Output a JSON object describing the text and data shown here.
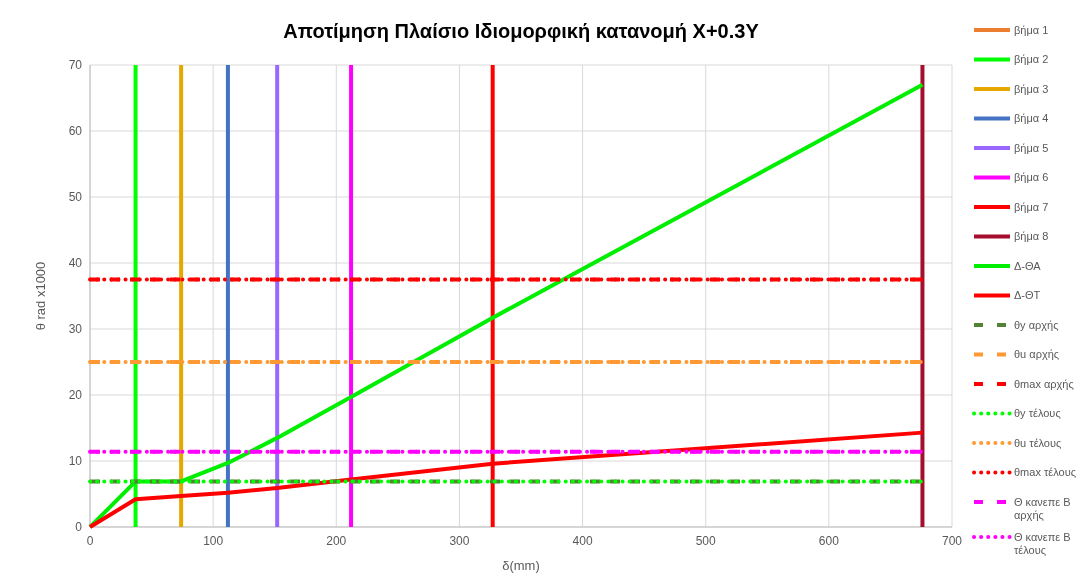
{
  "chart_data": {
    "type": "line",
    "title": "Αποτίμηση Πλαίσιο Ιδιομορφική κατανομή X+0.3Y",
    "xlabel": "δ(mm)",
    "ylabel": "θ rad x1000",
    "xlim": [
      0,
      700
    ],
    "xticks": [
      0,
      100,
      200,
      300,
      400,
      500,
      600,
      700
    ],
    "ylim": [
      0,
      70
    ],
    "yticks": [
      0,
      10,
      20,
      30,
      40,
      50,
      60,
      70
    ],
    "grid": true,
    "legend": "right",
    "marker": "none",
    "series": [
      {
        "name": "βήμα 1",
        "color": "#ed7d31",
        "x": [
          null,
          null
        ],
        "values": [
          null,
          null
        ],
        "line_style": "solid"
      },
      {
        "name": "βήμα 2",
        "color": "#00ff00",
        "x": [
          37,
          37
        ],
        "values": [
          0,
          70
        ],
        "line_style": "solid"
      },
      {
        "name": "βήμα 3",
        "color": "#e6a800",
        "x": [
          74,
          74
        ],
        "values": [
          0,
          70
        ],
        "line_style": "solid"
      },
      {
        "name": "βήμα 4",
        "color": "#4472c4",
        "x": [
          112,
          112
        ],
        "values": [
          0,
          70
        ],
        "line_style": "solid"
      },
      {
        "name": "βήμα 5",
        "color": "#9966ff",
        "x": [
          152,
          152
        ],
        "values": [
          0,
          70
        ],
        "line_style": "solid"
      },
      {
        "name": "βήμα 6",
        "color": "#ff00ff",
        "x": [
          212,
          212
        ],
        "values": [
          0,
          70
        ],
        "line_style": "solid"
      },
      {
        "name": "βήμα 7",
        "color": "#ff0000",
        "x": [
          327,
          327
        ],
        "values": [
          0,
          70
        ],
        "line_style": "solid"
      },
      {
        "name": "βήμα 8",
        "color": "#a50f2d",
        "x": [
          676,
          676
        ],
        "values": [
          0,
          70
        ],
        "line_style": "solid"
      },
      {
        "name": "Δ-ΘΑ",
        "color": "#00ee00",
        "x": [
          0,
          37,
          74,
          112,
          152,
          212,
          327,
          676
        ],
        "values": [
          0,
          6.9,
          6.9,
          9.7,
          13.5,
          19.7,
          31.7,
          67
        ],
        "line_style": "solid"
      },
      {
        "name": "Δ-ΘΤ",
        "color": "#ff0000",
        "x": [
          0,
          37,
          74,
          112,
          152,
          212,
          327,
          676
        ],
        "values": [
          0,
          4.2,
          4.7,
          5.2,
          5.9,
          7.2,
          9.6,
          14.3
        ],
        "line_style": "solid"
      },
      {
        "name": "θy αρχής",
        "color": "#548235",
        "x": [
          0,
          676
        ],
        "values": [
          6.9,
          6.9
        ],
        "line_style": "dashed"
      },
      {
        "name": "θu αρχής",
        "color": "#ff9933",
        "x": [
          0,
          676
        ],
        "values": [
          25,
          25
        ],
        "line_style": "dashed"
      },
      {
        "name": "θmax αρχής",
        "color": "#ff0000",
        "x": [
          0,
          676
        ],
        "values": [
          37.5,
          37.5
        ],
        "line_style": "dashed"
      },
      {
        "name": "θy  τέλους",
        "color": "#00ff00",
        "x": [
          0,
          676
        ],
        "values": [
          6.9,
          6.9
        ],
        "line_style": "dotted"
      },
      {
        "name": "θu τέλους",
        "color": "#ff9933",
        "x": [
          0,
          676
        ],
        "values": [
          25,
          25
        ],
        "line_style": "dotted"
      },
      {
        "name": "θmax τέλους",
        "color": "#ff0000",
        "x": [
          0,
          676
        ],
        "values": [
          37.5,
          37.5
        ],
        "line_style": "dotted"
      },
      {
        "name": "Θ κανεπε Β αρχής",
        "color": "#ff00ff",
        "x": [
          0,
          676
        ],
        "values": [
          11.4,
          11.4
        ],
        "line_style": "dashed"
      },
      {
        "name": "Θ κανεπε Β τέλους",
        "color": "#ff00ff",
        "x": [
          0,
          676
        ],
        "values": [
          11.4,
          11.4
        ],
        "line_style": "dotted"
      }
    ]
  }
}
